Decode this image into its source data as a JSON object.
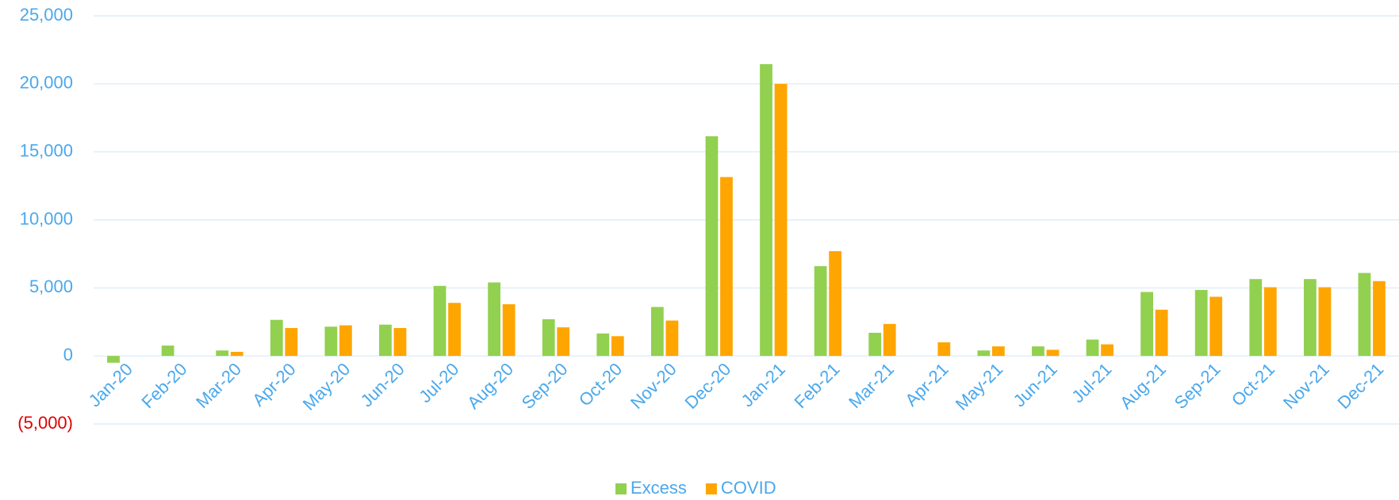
{
  "chart_data": {
    "type": "bar",
    "categories": [
      "Jan-20",
      "Feb-20",
      "Mar-20",
      "Apr-20",
      "May-20",
      "Jun-20",
      "Jul-20",
      "Aug-20",
      "Sep-20",
      "Oct-20",
      "Nov-20",
      "Dec-20",
      "Jan-21",
      "Feb-21",
      "Mar-21",
      "Apr-21",
      "May-21",
      "Jun-21",
      "Jul-21",
      "Aug-21",
      "Sep-21",
      "Oct-21",
      "Nov-21",
      "Dec-21"
    ],
    "series": [
      {
        "name": "Excess",
        "color": "#92d050",
        "values": [
          -500,
          760,
          400,
          2650,
          2150,
          2300,
          5150,
          5400,
          2700,
          1650,
          3600,
          16150,
          21450,
          6600,
          1700,
          0,
          400,
          700,
          1200,
          4700,
          4850,
          5650,
          5650,
          6100
        ]
      },
      {
        "name": "COVID",
        "color": "#ffa500",
        "values": [
          0,
          0,
          300,
          2050,
          2250,
          2050,
          3900,
          3800,
          2100,
          1450,
          2600,
          13150,
          20000,
          7700,
          2350,
          1000,
          700,
          450,
          850,
          3400,
          4350,
          5050,
          5050,
          5500
        ]
      }
    ],
    "ylim": [
      -5000,
      25000
    ],
    "yticks": [
      {
        "value": -5000,
        "label": "(5,000)"
      },
      0,
      {
        "value": 5000,
        "label": "5,000"
      },
      {
        "value": 10000,
        "label": "10,000"
      },
      {
        "value": 15000,
        "label": "15,000"
      },
      {
        "value": 20000,
        "label": "20,000"
      },
      {
        "value": 25000,
        "label": "25,000"
      }
    ],
    "grid": true,
    "legend": "bottom"
  }
}
